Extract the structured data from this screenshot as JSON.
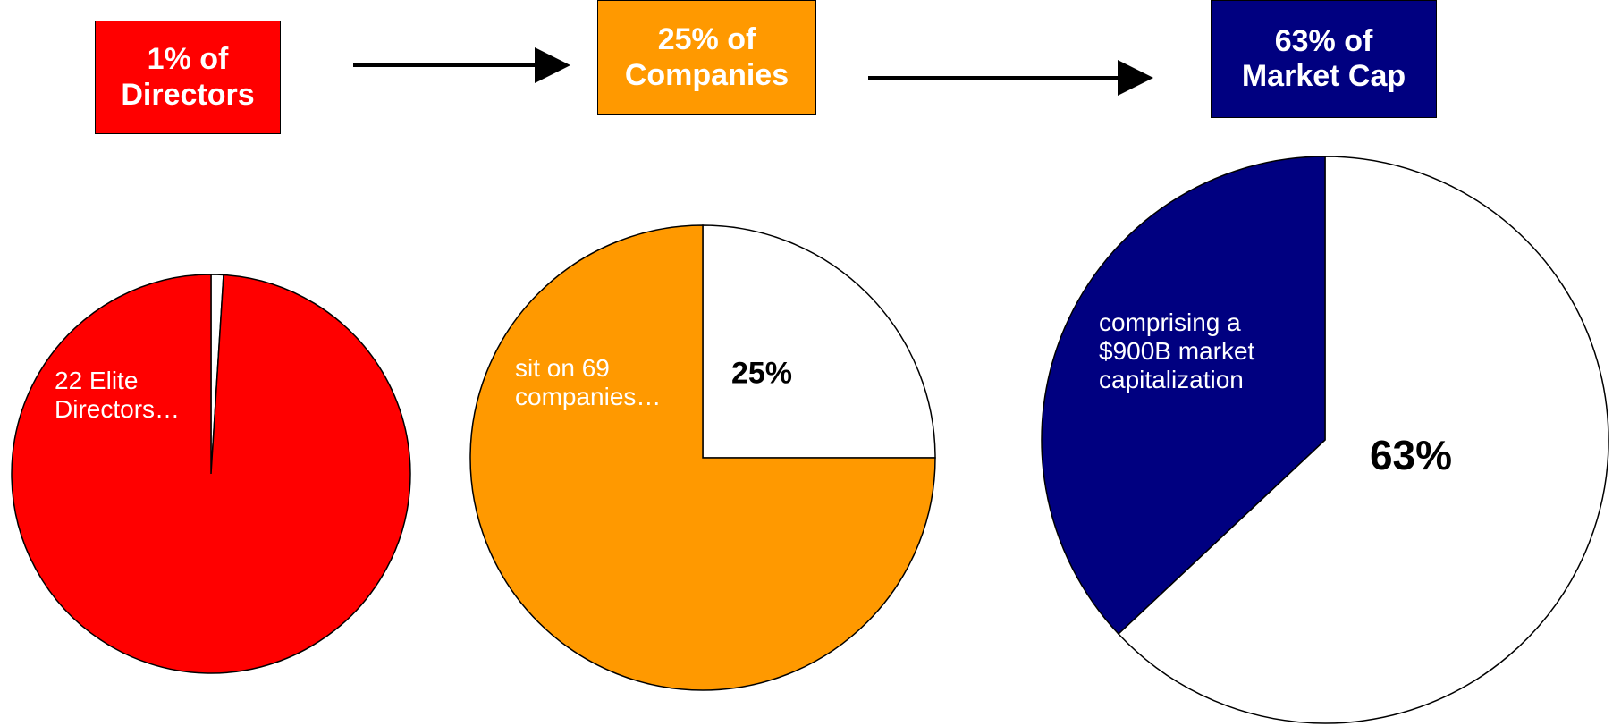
{
  "chart_data": [
    {
      "type": "pie",
      "title": "1% of Directors",
      "title_color": "#ff0000",
      "values": [
        1,
        99
      ],
      "colors": [
        "#ffffff",
        "#ff0000"
      ],
      "annotation": "22 Elite Directors…"
    },
    {
      "type": "pie",
      "title": "25% of Companies",
      "title_color": "#ff9900",
      "values": [
        25,
        75
      ],
      "colors": [
        "#ffffff",
        "#ff9900"
      ],
      "value_labels": [
        "25%",
        null
      ],
      "annotation": "sit on 69 companies…"
    },
    {
      "type": "pie",
      "title": "63% of Market Cap",
      "title_color": "#000080",
      "values": [
        63,
        37
      ],
      "colors": [
        "#ffffff",
        "#000080"
      ],
      "value_labels": [
        "63%",
        null
      ],
      "annotation": "comprising a $900B market capitalization"
    }
  ]
}
